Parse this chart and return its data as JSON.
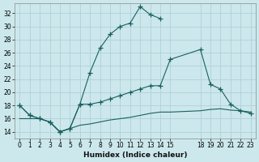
{
  "xlabel": "Humidex (Indice chaleur)",
  "bg_color": "#cce8ec",
  "grid_color": "#b0d0d8",
  "line_color": "#1a6060",
  "series": [
    {
      "x": [
        0,
        1,
        2,
        3,
        4,
        5,
        6,
        7,
        8,
        9,
        10,
        11,
        12,
        13,
        14,
        15,
        18,
        19,
        20,
        21,
        22,
        23
      ],
      "y": [
        18,
        16.5,
        16,
        15.5,
        14,
        14.5,
        18.2,
        23,
        26.7,
        28.8,
        30,
        30.5,
        33,
        31.8,
        31.2,
        null,
        null,
        null,
        null,
        null,
        null,
        null
      ],
      "marker": true
    },
    {
      "x": [
        0,
        1,
        2,
        3,
        4,
        5,
        6,
        7,
        8,
        9,
        10,
        11,
        12,
        13,
        14,
        15,
        18,
        19,
        20,
        21,
        22,
        23
      ],
      "y": [
        16,
        16,
        16,
        15.5,
        14,
        14.5,
        15,
        15.2,
        15.5,
        15.8,
        16,
        16.2,
        16.5,
        16.8,
        17,
        17,
        17.2,
        17.4,
        17.5,
        17.3,
        17.2,
        17
      ],
      "marker": false
    },
    {
      "x": [
        0,
        1,
        2,
        3,
        4,
        5,
        6,
        7,
        8,
        9,
        10,
        11,
        12,
        13,
        14,
        15,
        18,
        19,
        20,
        21,
        22,
        23
      ],
      "y": [
        18,
        16.5,
        16,
        15.5,
        14,
        14.5,
        18.2,
        18.2,
        18.5,
        19,
        19.5,
        20,
        20.5,
        21,
        21,
        25,
        26.5,
        21.2,
        20.5,
        18.2,
        17.2,
        16.8
      ],
      "marker": true
    }
  ],
  "xlim": [
    -0.5,
    23.5
  ],
  "ylim": [
    13,
    33.5
  ],
  "yticks": [
    14,
    16,
    18,
    20,
    22,
    24,
    26,
    28,
    30,
    32
  ],
  "xticks": [
    0,
    1,
    2,
    3,
    4,
    5,
    6,
    7,
    8,
    9,
    10,
    11,
    12,
    13,
    14,
    15,
    18,
    19,
    20,
    21,
    22,
    23
  ],
  "xlabel_fontsize": 6.5,
  "tick_fontsize": 5.5
}
